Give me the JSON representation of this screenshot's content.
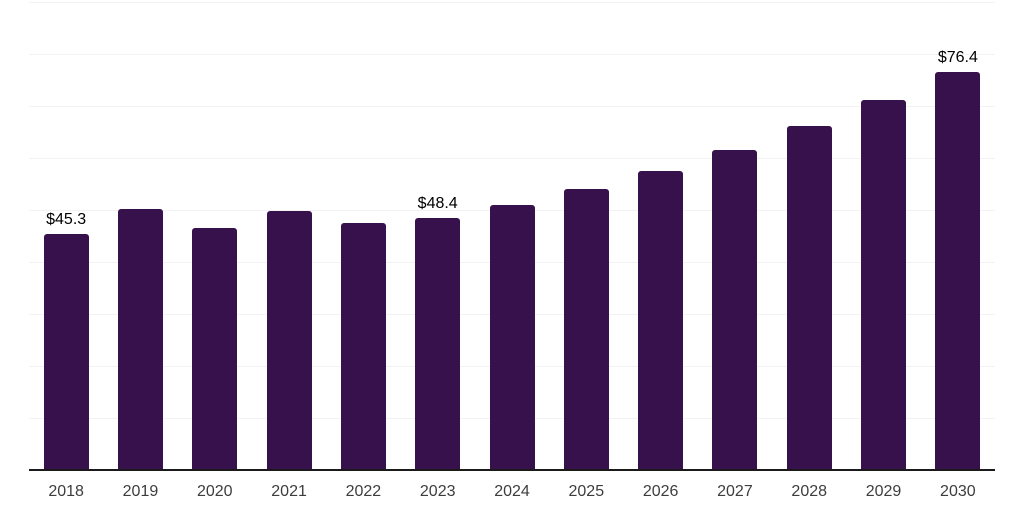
{
  "chart_data": {
    "type": "bar",
    "title": "",
    "xlabel": "",
    "ylabel": "",
    "categories": [
      "2018",
      "2019",
      "2020",
      "2021",
      "2022",
      "2023",
      "2024",
      "2025",
      "2026",
      "2027",
      "2028",
      "2029",
      "2030"
    ],
    "values": [
      45.3,
      50.2,
      46.5,
      49.8,
      47.4,
      48.4,
      50.9,
      53.9,
      57.4,
      61.5,
      66.1,
      71.1,
      76.4
    ],
    "annotations": [
      {
        "category": "2018",
        "text": "$45.3"
      },
      {
        "category": "2023",
        "text": "$48.4"
      },
      {
        "category": "2030",
        "text": "$76.4"
      }
    ],
    "ylim": [
      0,
      90
    ],
    "grid_step": 10,
    "grid": true,
    "legend": false,
    "value_prefix": "$",
    "colors": {
      "bar": "#36114B",
      "gridline": "#f2f2f2",
      "axis_line": "#1a1a1a",
      "value_label": "#000000",
      "tick_label": "#3d3d3d",
      "background": "#ffffff"
    }
  }
}
